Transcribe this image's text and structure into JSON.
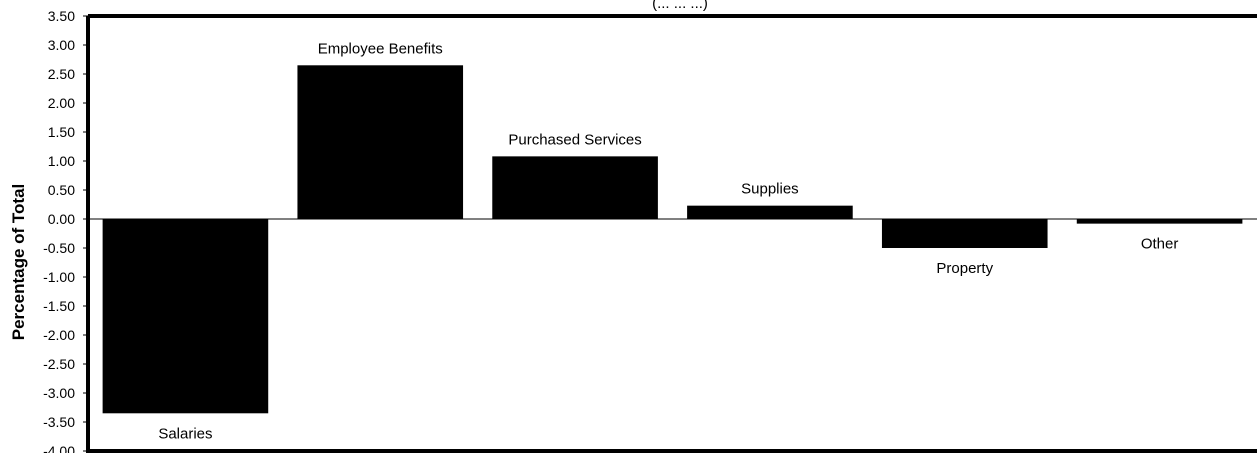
{
  "chart_data": {
    "type": "bar",
    "title": "(... ... ...)",
    "xlabel": "",
    "ylabel": "Percentage of Total",
    "categories": [
      "Salaries",
      "Employee Benefits",
      "Purchased Services",
      "Supplies",
      "Property",
      "Other"
    ],
    "values": [
      -3.35,
      2.65,
      1.08,
      0.23,
      -0.5,
      -0.08
    ],
    "ylim": [
      -4.0,
      3.5
    ],
    "yticks": [
      "3.50",
      "3.00",
      "2.50",
      "2.00",
      "1.50",
      "1.00",
      "0.50",
      "0.00",
      "-0.50",
      "-1.00",
      "-1.50",
      "-2.00",
      "-2.50",
      "-3.00",
      "-3.50",
      "-4.00"
    ],
    "bar_color": "#000000",
    "grid": false,
    "legend": "none"
  }
}
